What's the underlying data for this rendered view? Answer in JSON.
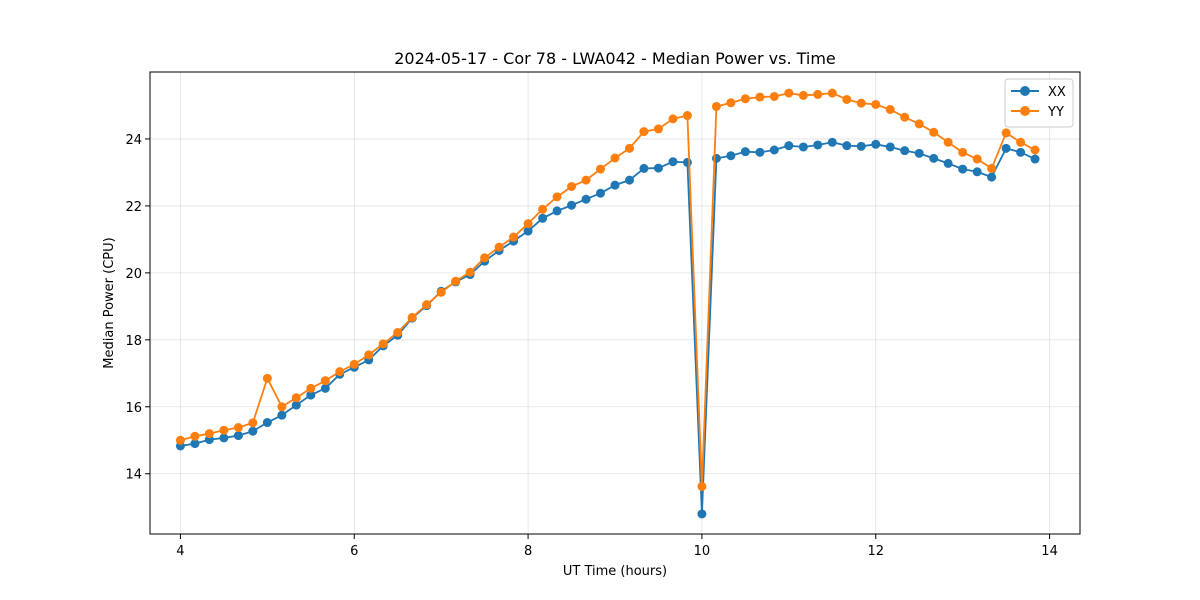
{
  "chart_data": {
    "type": "line",
    "title": "2024-05-17 - Cor 78 - LWA042 - Median Power vs. Time",
    "xlabel": "UT Time (hours)",
    "ylabel": "Median Power (CPU)",
    "xlim": [
      3.65,
      14.35
    ],
    "ylim": [
      12.2,
      26.0
    ],
    "xticks": [
      4,
      6,
      8,
      10,
      12,
      14
    ],
    "xtick_labels": [
      "4",
      "6",
      "8",
      "10",
      "12",
      "14"
    ],
    "yticks": [
      14,
      16,
      18,
      20,
      22,
      24
    ],
    "ytick_labels": [
      "14",
      "16",
      "18",
      "20",
      "22",
      "24"
    ],
    "grid": true,
    "legend_position": "top-right",
    "x": [
      4.0,
      4.167,
      4.333,
      4.5,
      4.667,
      4.833,
      5.0,
      5.167,
      5.333,
      5.5,
      5.667,
      5.833,
      6.0,
      6.167,
      6.333,
      6.5,
      6.667,
      6.833,
      7.0,
      7.167,
      7.333,
      7.5,
      7.667,
      7.833,
      8.0,
      8.167,
      8.333,
      8.5,
      8.667,
      8.833,
      9.0,
      9.167,
      9.333,
      9.5,
      9.667,
      9.833,
      10.0,
      10.167,
      10.333,
      10.5,
      10.667,
      10.833,
      11.0,
      11.167,
      11.333,
      11.5,
      11.667,
      11.833,
      12.0,
      12.167,
      12.333,
      12.5,
      12.667,
      12.833,
      13.0,
      13.167,
      13.333,
      13.5,
      13.667,
      13.833
    ],
    "series": [
      {
        "name": "XX",
        "color": "#1f77b4",
        "values": [
          14.83,
          14.9,
          15.02,
          15.07,
          15.14,
          15.27,
          15.53,
          15.75,
          16.05,
          16.35,
          16.55,
          16.97,
          17.18,
          17.4,
          17.82,
          18.14,
          18.65,
          19.02,
          19.45,
          19.73,
          19.95,
          20.35,
          20.67,
          20.95,
          21.25,
          21.63,
          21.85,
          22.02,
          22.2,
          22.38,
          22.62,
          22.77,
          23.12,
          23.13,
          23.32,
          23.3,
          12.8,
          23.42,
          23.5,
          23.62,
          23.6,
          23.67,
          23.8,
          23.76,
          23.82,
          23.9,
          23.8,
          23.78,
          23.84,
          23.76,
          23.65,
          23.57,
          23.42,
          23.27,
          23.1,
          23.02,
          22.86,
          23.72,
          23.6,
          23.4
        ]
      },
      {
        "name": "YY",
        "color": "#ff7f0e",
        "values": [
          15.0,
          15.12,
          15.2,
          15.3,
          15.38,
          15.52,
          16.85,
          16.0,
          16.27,
          16.55,
          16.78,
          17.05,
          17.27,
          17.55,
          17.88,
          18.22,
          18.67,
          19.05,
          19.42,
          19.75,
          20.02,
          20.45,
          20.77,
          21.07,
          21.47,
          21.9,
          22.27,
          22.58,
          22.77,
          23.1,
          23.43,
          23.72,
          24.22,
          24.3,
          24.6,
          24.7,
          13.62,
          24.97,
          25.08,
          25.2,
          25.25,
          25.27,
          25.37,
          25.3,
          25.33,
          25.37,
          25.18,
          25.07,
          25.03,
          24.88,
          24.65,
          24.45,
          24.2,
          23.9,
          23.6,
          23.4,
          23.12,
          24.18,
          23.9,
          23.67
        ]
      }
    ]
  }
}
